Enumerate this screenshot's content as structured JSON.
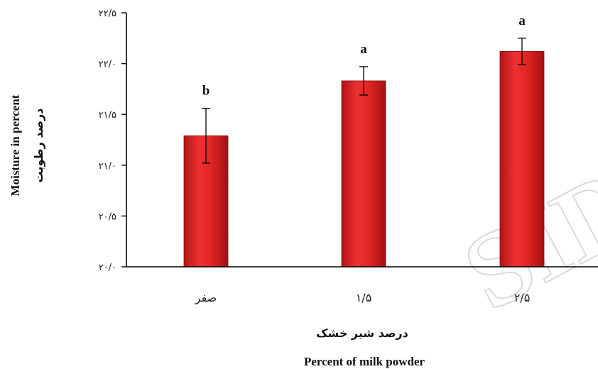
{
  "chart_data": {
    "type": "bar",
    "categories": [
      "صفر",
      "۱/۵",
      "۲/۵"
    ],
    "values": [
      21.29,
      21.83,
      22.12
    ],
    "error_bars": [
      0.27,
      0.14,
      0.13
    ],
    "significance": [
      "b",
      "a",
      "a"
    ],
    "xlabel_fa": "درصد شیر خشک",
    "xlabel_en": "Percent of milk powder",
    "ylabel_en": "Moisture in percent",
    "ylabel_fa": "درصد رطوبت",
    "ylim": [
      20.0,
      22.5
    ],
    "y_ticks": [
      20.0,
      20.5,
      21.0,
      21.5,
      22.0,
      22.5
    ],
    "y_tick_labels": [
      "۲۰/۰",
      "۲۰/۵",
      "۲۱/۰",
      "۲۱/۵",
      "۲۲/۰",
      "۲۲/۵"
    ],
    "bar_color": "#e02424",
    "grid": false
  },
  "watermark": "SID"
}
